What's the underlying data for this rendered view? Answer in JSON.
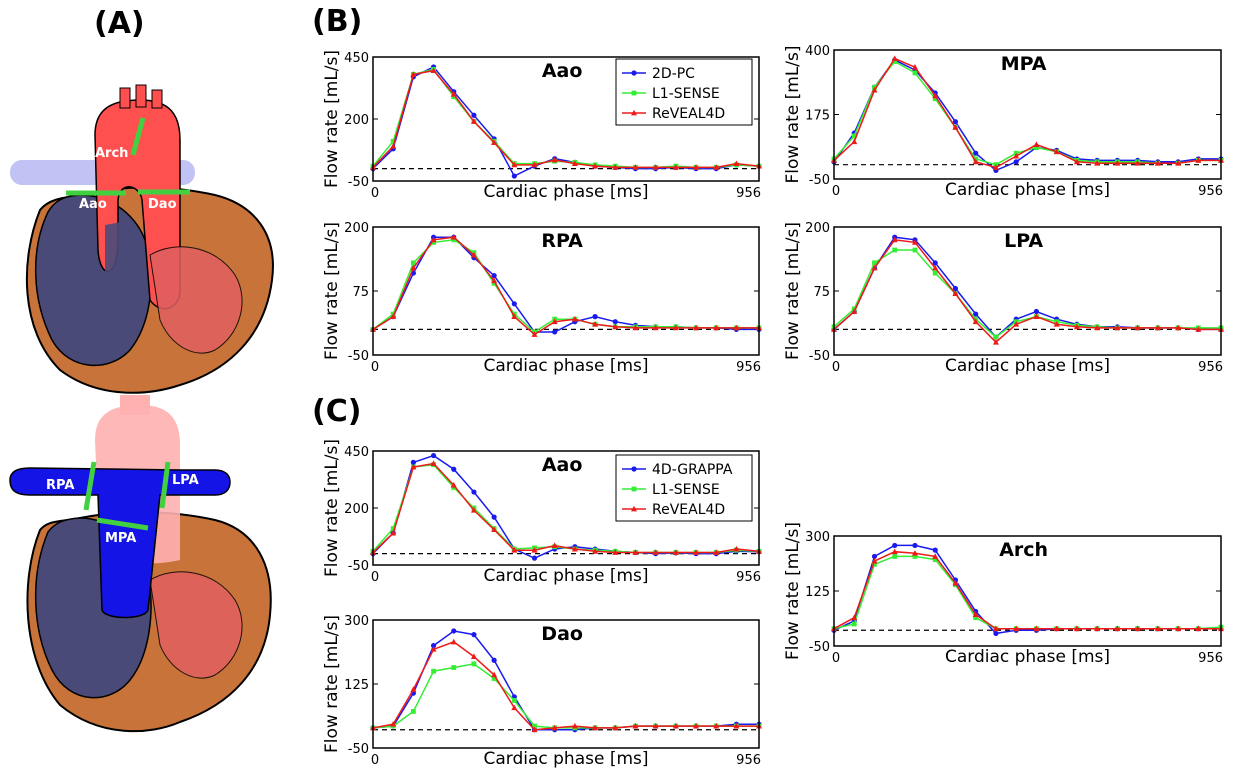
{
  "panel_labels": {
    "a": "(A)",
    "b": "(B)",
    "c": "(C)"
  },
  "heart_labels": {
    "top": {
      "arch": "Arch",
      "aao": "Aao",
      "dao": "Dao"
    },
    "bottom": {
      "rpa": "RPA",
      "lpa": "LPA",
      "mpa": "MPA"
    }
  },
  "colors": {
    "heart_dark": "#4a4a78",
    "heart_outer": "#c8733a",
    "aorta": "#ff5050",
    "vein_light": "#b0b4f0",
    "pulmonary": "#1414e6",
    "plane": "#40d040",
    "blue": "#1a1aee",
    "green": "#33ee33",
    "red": "#ee1a1a"
  },
  "chart_data": [
    {
      "id": "B-Aao",
      "type": "line",
      "title": "Aao",
      "xlabel": "Cardiac phase [ms]",
      "ylabel": "Flow rate [mL/s]",
      "xlim": [
        0,
        956
      ],
      "ylim": [
        -50,
        450
      ],
      "yticks": [
        -50,
        200,
        450
      ],
      "xticks": [
        0,
        956
      ],
      "baseline": 0,
      "legend_position": "top-right",
      "x": [
        0,
        50,
        100,
        150,
        200,
        250,
        300,
        350,
        400,
        450,
        500,
        550,
        600,
        650,
        700,
        750,
        800,
        850,
        900,
        956
      ],
      "series": [
        {
          "name": "2D-PC",
          "color": "blue",
          "marker": "circle",
          "values": [
            0,
            80,
            370,
            410,
            310,
            215,
            120,
            -30,
            10,
            40,
            25,
            10,
            5,
            0,
            0,
            5,
            0,
            0,
            15,
            10
          ]
        },
        {
          "name": "L1-SENSE",
          "color": "green",
          "marker": "square",
          "values": [
            10,
            110,
            380,
            400,
            290,
            190,
            110,
            20,
            20,
            30,
            25,
            15,
            10,
            5,
            5,
            10,
            5,
            5,
            15,
            10
          ]
        },
        {
          "name": "ReVEAL4D",
          "color": "red",
          "marker": "triangle",
          "values": [
            5,
            90,
            380,
            395,
            300,
            190,
            105,
            15,
            15,
            35,
            20,
            10,
            5,
            5,
            5,
            5,
            5,
            5,
            20,
            10
          ]
        }
      ]
    },
    {
      "id": "B-MPA",
      "type": "line",
      "title": "MPA",
      "xlabel": "Cardiac phase [ms]",
      "ylabel": "Flow rate [mL/s]",
      "xlim": [
        0,
        956
      ],
      "ylim": [
        -50,
        400
      ],
      "yticks": [
        -50,
        175,
        400
      ],
      "xticks": [
        0,
        956
      ],
      "baseline": 0,
      "x": [
        0,
        50,
        100,
        150,
        200,
        250,
        300,
        350,
        400,
        450,
        500,
        550,
        600,
        650,
        700,
        750,
        800,
        850,
        900,
        956
      ],
      "series": [
        {
          "name": "2D-PC",
          "color": "blue",
          "marker": "circle",
          "values": [
            10,
            110,
            270,
            365,
            330,
            250,
            150,
            40,
            -20,
            10,
            60,
            50,
            20,
            15,
            15,
            15,
            10,
            10,
            20,
            20
          ]
        },
        {
          "name": "L1-SENSE",
          "color": "green",
          "marker": "square",
          "values": [
            20,
            100,
            270,
            360,
            320,
            230,
            130,
            20,
            0,
            40,
            60,
            45,
            15,
            10,
            10,
            10,
            5,
            5,
            15,
            15
          ]
        },
        {
          "name": "ReVEAL4D",
          "color": "red",
          "marker": "triangle",
          "values": [
            15,
            80,
            260,
            370,
            340,
            240,
            130,
            10,
            -10,
            30,
            70,
            45,
            10,
            5,
            5,
            5,
            5,
            5,
            15,
            15
          ]
        }
      ]
    },
    {
      "id": "B-RPA",
      "type": "line",
      "title": "RPA",
      "xlabel": "Cardiac phase [ms]",
      "ylabel": "Flow rate [mL/s]",
      "xlim": [
        0,
        956
      ],
      "ylim": [
        -50,
        200
      ],
      "yticks": [
        -50,
        75,
        200
      ],
      "xticks": [
        0,
        956
      ],
      "baseline": 0,
      "x": [
        0,
        50,
        100,
        150,
        200,
        250,
        300,
        350,
        400,
        450,
        500,
        550,
        600,
        650,
        700,
        750,
        800,
        850,
        900,
        956
      ],
      "series": [
        {
          "name": "2D-PC",
          "color": "blue",
          "marker": "circle",
          "values": [
            0,
            25,
            110,
            180,
            180,
            140,
            105,
            50,
            -5,
            -5,
            15,
            25,
            15,
            8,
            5,
            5,
            3,
            3,
            0,
            0
          ]
        },
        {
          "name": "L1-SENSE",
          "color": "green",
          "marker": "square",
          "values": [
            0,
            30,
            130,
            170,
            175,
            150,
            90,
            30,
            -5,
            20,
            20,
            10,
            5,
            5,
            5,
            5,
            3,
            3,
            3,
            3
          ]
        },
        {
          "name": "ReVEAL4D",
          "color": "red",
          "marker": "triangle",
          "values": [
            0,
            25,
            120,
            175,
            180,
            145,
            95,
            25,
            -10,
            15,
            20,
            10,
            5,
            3,
            3,
            3,
            3,
            3,
            3,
            3
          ]
        }
      ]
    },
    {
      "id": "B-LPA",
      "type": "line",
      "title": "LPA",
      "xlabel": "Cardiac phase [ms]",
      "ylabel": "Flow rate [mL/s]",
      "xlim": [
        0,
        956
      ],
      "ylim": [
        -50,
        200
      ],
      "yticks": [
        -50,
        75,
        200
      ],
      "xticks": [
        0,
        956
      ],
      "baseline": 0,
      "x": [
        0,
        50,
        100,
        150,
        200,
        250,
        300,
        350,
        400,
        450,
        500,
        550,
        600,
        650,
        700,
        750,
        800,
        850,
        900,
        956
      ],
      "series": [
        {
          "name": "2D-PC",
          "color": "blue",
          "marker": "circle",
          "values": [
            0,
            35,
            120,
            180,
            175,
            130,
            80,
            30,
            -15,
            20,
            35,
            20,
            10,
            5,
            5,
            3,
            3,
            3,
            0,
            0
          ]
        },
        {
          "name": "L1-SENSE",
          "color": "green",
          "marker": "square",
          "values": [
            5,
            40,
            130,
            155,
            155,
            110,
            70,
            20,
            -15,
            15,
            25,
            15,
            8,
            5,
            3,
            3,
            3,
            3,
            3,
            3
          ]
        },
        {
          "name": "ReVEAL4D",
          "color": "red",
          "marker": "triangle",
          "values": [
            0,
            35,
            120,
            175,
            170,
            120,
            70,
            15,
            -25,
            10,
            25,
            10,
            5,
            3,
            3,
            3,
            3,
            3,
            0,
            0
          ]
        }
      ]
    },
    {
      "id": "C-Aao",
      "type": "line",
      "title": "Aao",
      "xlabel": "Cardiac phase [ms]",
      "ylabel": "Flow rate [mL/s]",
      "xlim": [
        0,
        956
      ],
      "ylim": [
        -50,
        450
      ],
      "yticks": [
        -50,
        200,
        450
      ],
      "xticks": [
        0,
        956
      ],
      "baseline": 0,
      "legend_position": "top-right",
      "x": [
        0,
        50,
        100,
        150,
        200,
        250,
        300,
        350,
        400,
        450,
        500,
        550,
        600,
        650,
        700,
        750,
        800,
        850,
        900,
        956
      ],
      "series": [
        {
          "name": "4D-GRAPPA",
          "color": "blue",
          "marker": "circle",
          "values": [
            0,
            90,
            400,
            430,
            370,
            270,
            160,
            20,
            -20,
            20,
            30,
            20,
            10,
            5,
            0,
            3,
            0,
            0,
            10,
            8
          ]
        },
        {
          "name": "L1-SENSE",
          "color": "green",
          "marker": "square",
          "values": [
            10,
            110,
            380,
            390,
            290,
            200,
            110,
            20,
            25,
            30,
            20,
            15,
            10,
            5,
            5,
            5,
            5,
            5,
            15,
            10
          ]
        },
        {
          "name": "ReVEAL4D",
          "color": "red",
          "marker": "triangle",
          "values": [
            5,
            90,
            380,
            395,
            300,
            190,
            105,
            15,
            15,
            35,
            20,
            10,
            5,
            5,
            5,
            5,
            5,
            5,
            20,
            10
          ]
        }
      ]
    },
    {
      "id": "C-Dao",
      "type": "line",
      "title": "Dao",
      "xlabel": "Cardiac phase [ms]",
      "ylabel": "Flow rate [mL/s]",
      "xlim": [
        0,
        956
      ],
      "ylim": [
        -50,
        300
      ],
      "yticks": [
        -50,
        125,
        300
      ],
      "xticks": [
        0,
        956
      ],
      "baseline": 0,
      "x": [
        0,
        50,
        100,
        150,
        200,
        250,
        300,
        350,
        400,
        450,
        500,
        550,
        600,
        650,
        700,
        750,
        800,
        850,
        900,
        956
      ],
      "series": [
        {
          "name": "4D-GRAPPA",
          "color": "blue",
          "marker": "circle",
          "values": [
            5,
            10,
            100,
            230,
            270,
            260,
            190,
            90,
            0,
            0,
            0,
            5,
            5,
            10,
            10,
            10,
            10,
            10,
            15,
            15
          ]
        },
        {
          "name": "L1-SENSE",
          "color": "green",
          "marker": "square",
          "values": [
            5,
            10,
            50,
            160,
            170,
            180,
            140,
            80,
            10,
            5,
            5,
            5,
            5,
            10,
            10,
            10,
            10,
            10,
            10,
            10
          ]
        },
        {
          "name": "ReVEAL4D",
          "color": "red",
          "marker": "triangle",
          "values": [
            5,
            15,
            110,
            220,
            240,
            200,
            150,
            60,
            0,
            5,
            10,
            5,
            5,
            10,
            10,
            10,
            10,
            10,
            10,
            10
          ]
        }
      ]
    },
    {
      "id": "C-Arch",
      "type": "line",
      "title": "Arch",
      "xlabel": "Cardiac phase [ms]",
      "ylabel": "Flow rate [mL/s]",
      "xlim": [
        0,
        956
      ],
      "ylim": [
        -50,
        300
      ],
      "yticks": [
        -50,
        125,
        300
      ],
      "xticks": [
        0,
        956
      ],
      "baseline": 0,
      "x": [
        0,
        50,
        100,
        150,
        200,
        250,
        300,
        350,
        400,
        450,
        500,
        550,
        600,
        650,
        700,
        750,
        800,
        850,
        900,
        956
      ],
      "series": [
        {
          "name": "4D-GRAPPA",
          "color": "blue",
          "marker": "circle",
          "values": [
            0,
            30,
            235,
            270,
            270,
            255,
            160,
            60,
            -10,
            0,
            0,
            5,
            5,
            5,
            5,
            5,
            5,
            5,
            5,
            5
          ]
        },
        {
          "name": "L1-SENSE",
          "color": "green",
          "marker": "square",
          "values": [
            5,
            20,
            210,
            235,
            235,
            225,
            145,
            40,
            5,
            5,
            5,
            5,
            5,
            5,
            5,
            5,
            5,
            5,
            5,
            10
          ]
        },
        {
          "name": "ReVEAL4D",
          "color": "red",
          "marker": "triangle",
          "values": [
            5,
            40,
            220,
            250,
            245,
            235,
            150,
            50,
            5,
            5,
            5,
            5,
            5,
            5,
            5,
            5,
            5,
            5,
            5,
            5
          ]
        }
      ]
    }
  ]
}
